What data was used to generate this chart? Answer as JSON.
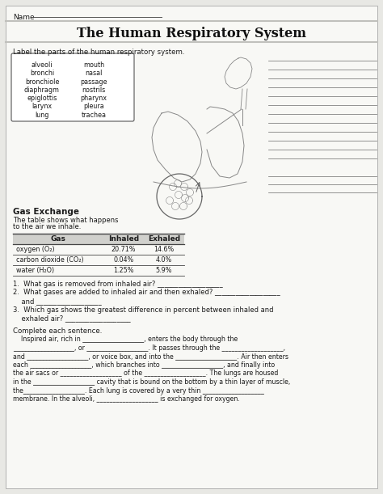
{
  "title": "The Human Respiratory System",
  "name_label": "Name",
  "subtitle": "Label the parts of the human respiratory system.",
  "word_bank_col1": [
    "alveoli",
    "bronchi",
    "bronchiole",
    "diaphragm",
    "epiglottis",
    "larynx",
    "lung"
  ],
  "word_bank_col2": [
    "mouth",
    "nasal",
    "passage",
    "nostrils",
    "pharynx",
    "pleura",
    "trachea"
  ],
  "gas_exchange_title": "Gas Exchange",
  "gas_exchange_subtitle1": "The table shows what happens",
  "gas_exchange_subtitle2": "to the air we inhale.",
  "table_headers": [
    "Gas",
    "Inhaled",
    "Exhaled"
  ],
  "table_rows": [
    [
      "oxygen (O₂)",
      "20.71%",
      "14.6%"
    ],
    [
      "carbon dioxide (CO₂)",
      "0.04%",
      "4.0%"
    ],
    [
      "water (H₂O)",
      "1.25%",
      "5.9%"
    ]
  ],
  "q1": "1.  What gas is removed from inhaled air? ___________________",
  "q2a": "2.  What gases are added to inhaled air and then exhaled? ___________________",
  "q2b": "    and ___________________",
  "q3a": "3.  Which gas shows the greatest difference in percent between inhaled and",
  "q3b": "    exhaled air? ___________________",
  "complete_label": "Complete each sentence.",
  "para1": "    Inspired air, rich in ___________________, enters the body through the",
  "para2": "___________________, or ___________________. It passes through the ___________________,",
  "para3": "and ___________________, or voice box, and into the ___________________. Air then enters",
  "para4": "each ___________________, which branches into ___________________, and finally into",
  "para5": "the air sacs or ___________________ of the ___________________. The lungs are housed",
  "para6": "in the ___________________ cavity that is bound on the bottom by a thin layer of muscle,",
  "para7": "the___________________. Each lung is covered by a very thin ___________________",
  "para8": "membrane. In the alveoli, ___________________ is exchanged for oxygen.",
  "bg_color": "#e8e8e4",
  "paper_color": "#f8f8f5",
  "title_color": "#111111",
  "text_color": "#1a1a1a",
  "gray_bar_color": "#c0c0bc",
  "line_color": "#555555",
  "table_line_color": "#444444"
}
